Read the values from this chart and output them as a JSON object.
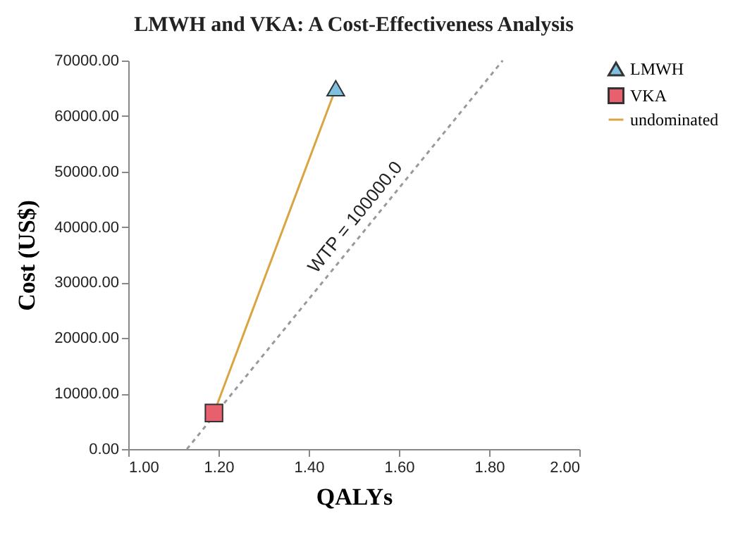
{
  "chart_data": {
    "type": "scatter",
    "title": "LMWH and VKA: A Cost-Effectiveness Analysis",
    "xlabel": "QALYs",
    "ylabel": "Cost (US$)",
    "xlim": [
      1.0,
      2.0
    ],
    "ylim": [
      0,
      70000
    ],
    "xticks": [
      {
        "value": 1.0,
        "label": "1.00"
      },
      {
        "value": 1.2,
        "label": "1.20"
      },
      {
        "value": 1.4,
        "label": "1.40"
      },
      {
        "value": 1.6,
        "label": "1.60"
      },
      {
        "value": 1.8,
        "label": "1.80"
      },
      {
        "value": 2.0,
        "label": "2.00"
      }
    ],
    "yticks": [
      {
        "value": 0,
        "label": "0.00"
      },
      {
        "value": 10000,
        "label": "10000.00"
      },
      {
        "value": 20000,
        "label": "20000.00"
      },
      {
        "value": 30000,
        "label": "30000.00"
      },
      {
        "value": 40000,
        "label": "40000.00"
      },
      {
        "value": 50000,
        "label": "50000.00"
      },
      {
        "value": 60000,
        "label": "60000.00"
      },
      {
        "value": 70000,
        "label": "70000.00"
      }
    ],
    "series": [
      {
        "type": "line",
        "color": "#999999",
        "line_style": "dashed",
        "x": [
          1.13,
          1.83
        ],
        "values": [
          0,
          70000
        ]
      },
      {
        "type": "scatter",
        "name": "LMWH",
        "color": "#7fbfe0",
        "marker": "triangle",
        "x": [
          1.46
        ],
        "values": [
          65000
        ]
      },
      {
        "type": "scatter",
        "name": "VKA",
        "color": "#e8606e",
        "marker": "square",
        "x": [
          1.19
        ],
        "values": [
          6500
        ]
      },
      {
        "type": "line",
        "name": "undominated",
        "color": "#d9a441",
        "line_style": "solid",
        "x": [
          1.19,
          1.46
        ],
        "values": [
          6500,
          65000
        ]
      }
    ],
    "annotations": [
      {
        "text": "WTP = 100000.0",
        "x": 1.53,
        "y": 40000
      }
    ],
    "grid": false,
    "legend": "right"
  }
}
